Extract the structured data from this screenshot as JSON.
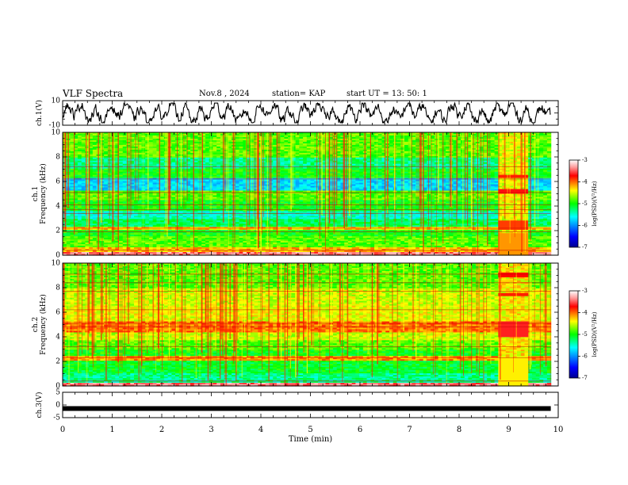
{
  "header": {
    "title": "VLF Spectra",
    "date": "Nov.8 , 2024",
    "station": "station= KAP",
    "start_ut": "start UT = 13: 50: 1"
  },
  "chart_data": [
    {
      "type": "line",
      "panel": "ch1-waveform",
      "ylabel": "ch.1(V)",
      "yticks": [
        "10",
        "-10"
      ],
      "ylim": [
        -10,
        10
      ],
      "x_range_min": [
        0,
        9.85
      ],
      "description_series": "noisy waveform oscillating roughly between -8 and 8 V"
    },
    {
      "type": "heatmap",
      "panel": "ch1-spectrogram",
      "ylabel": "ch.1\nFrequency (kHz)",
      "yticks": [
        "0",
        "2",
        "4",
        "6",
        "8",
        "10"
      ],
      "ylim": [
        0,
        10
      ],
      "xlim": [
        0,
        10
      ],
      "data_end_min": 9.85,
      "colorbar": {
        "label": "log(PSD)(V²/Hz)",
        "ticks": [
          "-3",
          "-4",
          "-5",
          "-6",
          "-7"
        ],
        "range": [
          -7,
          -3
        ]
      }
    },
    {
      "type": "heatmap",
      "panel": "ch2-spectrogram",
      "ylabel": "ch.2\nFrequency (kHz)",
      "yticks": [
        "0",
        "2",
        "4",
        "6",
        "8",
        "10"
      ],
      "ylim": [
        0,
        10
      ],
      "xlim": [
        0,
        10
      ],
      "data_end_min": 9.85,
      "colorbar": {
        "label": "log(PSD)(V²/Hz)",
        "ticks": [
          "-3",
          "-4",
          "-5",
          "-6",
          "-7"
        ],
        "range": [
          -7,
          -3
        ]
      }
    },
    {
      "type": "line",
      "panel": "ch3-waveform",
      "ylabel": "ch.3(V)",
      "yticks": [
        "5",
        "0",
        "-5"
      ],
      "ylim": [
        -5,
        5
      ],
      "level": -1.4,
      "xlabel": "Time (min)",
      "xticks": [
        "0",
        "1",
        "2",
        "3",
        "4",
        "5",
        "6",
        "7",
        "8",
        "9",
        "10"
      ],
      "xlim": [
        0,
        10
      ]
    }
  ],
  "colors": {
    "jet": [
      "#00008f",
      "#0000ff",
      "#00ffff",
      "#00ff00",
      "#ffff00",
      "#ff0000",
      "#ff9e9e",
      "#ffffff"
    ]
  }
}
